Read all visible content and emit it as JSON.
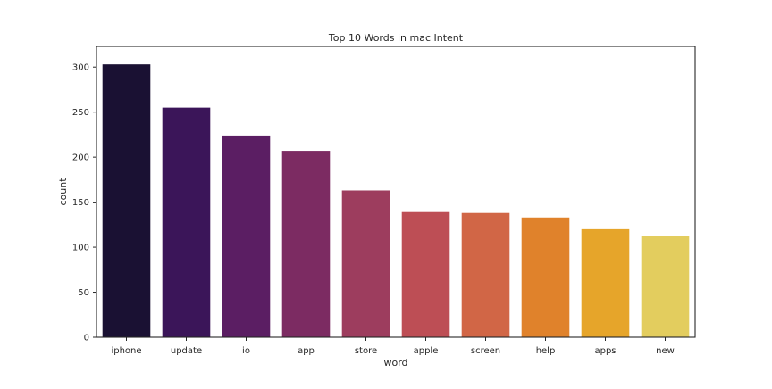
{
  "chart_data": {
    "type": "bar",
    "title": "Top 10 Words in mac Intent",
    "xlabel": "word",
    "ylabel": "count",
    "categories": [
      "iphone",
      "update",
      "io",
      "app",
      "store",
      "apple",
      "screen",
      "help",
      "apps",
      "new"
    ],
    "values": [
      303,
      255,
      224,
      207,
      163,
      139,
      138,
      133,
      120,
      112
    ],
    "ylim": [
      0,
      323
    ],
    "yticks": [
      0,
      50,
      100,
      150,
      200,
      250,
      300
    ],
    "grid": false,
    "legend": "none",
    "colors": [
      "#1a1133",
      "#3b1559",
      "#5b1e63",
      "#7c2b62",
      "#9d3d5e",
      "#bd4e55",
      "#d16646",
      "#e0822b",
      "#e6a52a",
      "#e3cd5e"
    ]
  }
}
